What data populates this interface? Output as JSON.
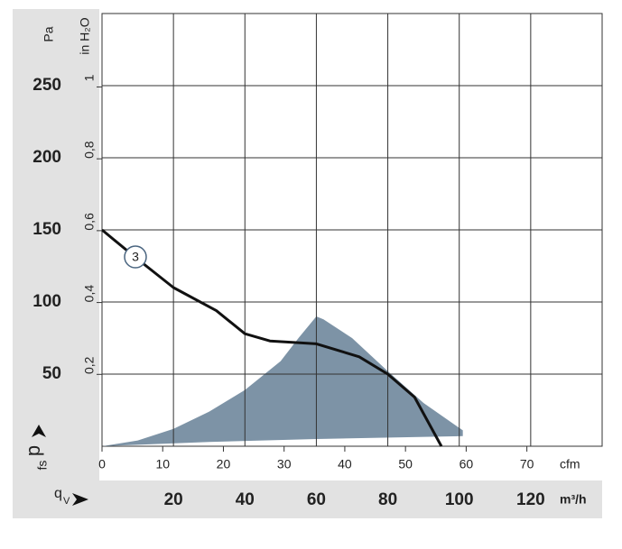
{
  "chart_data": {
    "type": "fan-curve",
    "x_unit": "m³/h",
    "y_unit": "Pa",
    "x2_unit": "cfm",
    "y2_unit": "in H₂O",
    "y_label": "p",
    "y_label_sub": "fs",
    "x_label": "q",
    "x_label_sub": "V",
    "annotation": "3",
    "xlim": [
      0,
      140
    ],
    "xticks": [
      20,
      40,
      60,
      80,
      100,
      120
    ],
    "ylim": [
      0,
      300
    ],
    "yticks": [
      50,
      100,
      150,
      200,
      250
    ],
    "x2lim": [
      0,
      82.4
    ],
    "x2ticks": [
      0,
      10,
      20,
      30,
      40,
      50,
      60,
      70
    ],
    "y2lim": [
      0,
      1.2044
    ],
    "y2ticks": [
      {
        "value": 0.2,
        "label": "0,2"
      },
      {
        "value": 0.4,
        "label": "0,4"
      },
      {
        "value": 0.6,
        "label": "0,6"
      },
      {
        "value": 0.8,
        "label": "0,8"
      },
      1
    ],
    "grid": true,
    "area": {
      "color": "#7d93a6",
      "x": [
        0,
        30,
        60,
        101,
        101,
        90,
        80,
        70,
        62,
        60,
        55,
        50,
        40,
        30,
        20,
        10,
        0
      ],
      "y": [
        0,
        3,
        5,
        7,
        11,
        30,
        52,
        75,
        88,
        90,
        75,
        59,
        39,
        24,
        12,
        4,
        0
      ]
    },
    "series": [
      {
        "color": "#111111",
        "x": [
          0,
          9.3,
          20,
          32,
          40,
          47,
          60,
          72,
          80,
          87.5,
          95
        ],
        "y": [
          150,
          131,
          110,
          94,
          78,
          73,
          71,
          62,
          50,
          34,
          0
        ]
      }
    ]
  }
}
